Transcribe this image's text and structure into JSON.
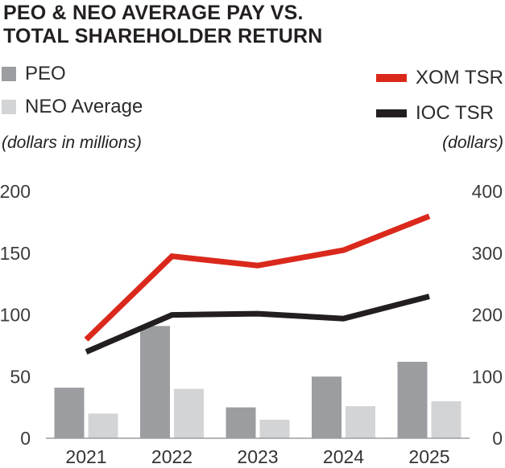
{
  "title": {
    "line1": "PEO & NEO AVERAGE PAY VS.",
    "line2": "TOTAL SHAREHOLDER RETURN"
  },
  "legend": {
    "peo_label": "PEO",
    "neo_label": "NEO Average",
    "xom_label": "XOM TSR",
    "ioc_label": "IOC TSR"
  },
  "axis_units": {
    "left": "(dollars in millions)",
    "right": "(dollars)"
  },
  "colors": {
    "peo_bar": "#9b9da1",
    "neo_bar": "#d3d4d6",
    "xom_line": "#da291c",
    "ioc_line": "#231f20",
    "axis_line": "#9b9da1",
    "title_text": "#231f20",
    "tick_text": "#3c3c3e"
  },
  "chart_data": {
    "type": "bar+line combo",
    "title": "PEO & NEO AVERAGE PAY VS. TOTAL SHAREHOLDER RETURN",
    "categories": [
      "2021",
      "2022",
      "2023",
      "2024",
      "2025"
    ],
    "bar_series": [
      {
        "name": "PEO",
        "axis": "left",
        "values": [
          41,
          91,
          25,
          50,
          62
        ]
      },
      {
        "name": "NEO Average",
        "axis": "left",
        "values": [
          20,
          40,
          15,
          26,
          30
        ]
      }
    ],
    "line_series": [
      {
        "name": "XOM TSR",
        "axis": "right",
        "values": [
          160,
          295,
          280,
          305,
          360
        ]
      },
      {
        "name": "IOC TSR",
        "axis": "right",
        "values": [
          140,
          200,
          202,
          194,
          230
        ]
      }
    ],
    "left_axis": {
      "label": "(dollars in millions)",
      "range": [
        0,
        200
      ],
      "ticks": [
        0,
        50,
        100,
        150,
        200
      ]
    },
    "right_axis": {
      "label": "(dollars)",
      "range": [
        0,
        400
      ],
      "ticks": [
        0,
        100,
        200,
        300,
        400
      ]
    },
    "grid": false,
    "legend_position": "top"
  }
}
